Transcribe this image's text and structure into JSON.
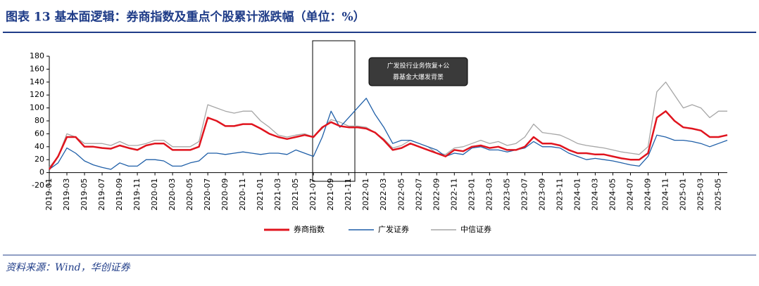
{
  "chart_data": {
    "type": "line",
    "title": "图表 13  基本面逻辑：券商指数及重点个股累计涨跌幅（单位：%）",
    "annotation": [
      "广发投行业务恢复+公",
      "募基金大爆发背景"
    ],
    "source": "资料来源：Wind，华创证券",
    "x": [
      "2019-01",
      "2019-02",
      "2019-03",
      "2019-04",
      "2019-05",
      "2019-06",
      "2019-07",
      "2019-08",
      "2019-09",
      "2019-10",
      "2019-11",
      "2019-12",
      "2020-01",
      "2020-02",
      "2020-03",
      "2020-04",
      "2020-05",
      "2020-06",
      "2020-07",
      "2020-08",
      "2020-09",
      "2020-10",
      "2020-11",
      "2020-12",
      "2021-01",
      "2021-02",
      "2021-03",
      "2021-04",
      "2021-05",
      "2021-06",
      "2021-07",
      "2021-08",
      "2021-09",
      "2021-10",
      "2021-11",
      "2021-12",
      "2022-01",
      "2022-02",
      "2022-03",
      "2022-04",
      "2022-05",
      "2022-06",
      "2022-07",
      "2022-08",
      "2022-09",
      "2022-10",
      "2022-11",
      "2022-12",
      "2023-01",
      "2023-02",
      "2023-03",
      "2023-04",
      "2023-05",
      "2023-06",
      "2023-07",
      "2023-08",
      "2023-09",
      "2023-10",
      "2023-11",
      "2023-12",
      "2024-01",
      "2024-02",
      "2024-03",
      "2024-04",
      "2024-05",
      "2024-06",
      "2024-07",
      "2024-08",
      "2024-09",
      "2024-10",
      "2024-11",
      "2024-12",
      "2025-01",
      "2025-02",
      "2025-03",
      "2025-04",
      "2025-05",
      "2025-06"
    ],
    "series": [
      {
        "name": "券商指数",
        "color": "#e0141e",
        "values": [
          5,
          25,
          55,
          55,
          40,
          40,
          38,
          37,
          42,
          38,
          35,
          42,
          45,
          45,
          35,
          35,
          35,
          40,
          85,
          80,
          72,
          72,
          75,
          75,
          68,
          60,
          55,
          52,
          55,
          58,
          55,
          70,
          78,
          72,
          70,
          70,
          68,
          62,
          50,
          35,
          38,
          45,
          40,
          35,
          30,
          25,
          35,
          33,
          40,
          42,
          38,
          40,
          35,
          35,
          40,
          55,
          45,
          45,
          42,
          35,
          30,
          30,
          28,
          28,
          25,
          22,
          20,
          20,
          30,
          85,
          95,
          80,
          70,
          68,
          65,
          55,
          55,
          58
        ]
      },
      {
        "name": "广发证券",
        "color": "#1f5fa8",
        "values": [
          5,
          15,
          38,
          30,
          18,
          12,
          8,
          5,
          15,
          10,
          10,
          20,
          20,
          18,
          10,
          10,
          15,
          18,
          30,
          30,
          28,
          30,
          32,
          30,
          28,
          30,
          30,
          28,
          35,
          30,
          25,
          55,
          95,
          70,
          85,
          100,
          115,
          90,
          70,
          45,
          50,
          50,
          45,
          40,
          35,
          25,
          30,
          28,
          38,
          40,
          35,
          35,
          32,
          35,
          38,
          48,
          40,
          40,
          38,
          30,
          25,
          20,
          22,
          20,
          18,
          15,
          12,
          10,
          25,
          58,
          55,
          50,
          50,
          48,
          45,
          40,
          45,
          50
        ]
      },
      {
        "name": "中信证券",
        "color": "#a6a6a6",
        "values": [
          8,
          25,
          60,
          55,
          45,
          45,
          45,
          42,
          48,
          42,
          42,
          45,
          50,
          50,
          40,
          40,
          40,
          48,
          105,
          100,
          95,
          92,
          95,
          95,
          80,
          70,
          58,
          55,
          58,
          60,
          55,
          68,
          82,
          78,
          72,
          72,
          70,
          62,
          52,
          38,
          42,
          50,
          45,
          40,
          30,
          28,
          38,
          40,
          45,
          50,
          45,
          48,
          42,
          45,
          55,
          75,
          62,
          60,
          58,
          52,
          45,
          42,
          40,
          38,
          35,
          32,
          30,
          28,
          40,
          125,
          140,
          120,
          100,
          105,
          100,
          85,
          95,
          95
        ]
      }
    ],
    "xlim": [
      "2019-01",
      "2025-06"
    ],
    "xticks": [
      "2019-01",
      "2019-03",
      "2019-05",
      "2019-07",
      "2019-09",
      "2019-11",
      "2020-01",
      "2020-03",
      "2020-05",
      "2020-07",
      "2020-09",
      "2020-11",
      "2021-01",
      "2021-03",
      "2021-05",
      "2021-07",
      "2021-09",
      "2021-11",
      "2022-01",
      "2022-03",
      "2022-05",
      "2022-07",
      "2022-09",
      "2022-11",
      "2023-01",
      "2023-03",
      "2023-05",
      "2023-07",
      "2023-09",
      "2023-11",
      "2024-01",
      "2024-03",
      "2024-05",
      "2024-07",
      "2024-09",
      "2024-11",
      "2025-01",
      "2025-03",
      "2025-05"
    ],
    "ylim": [
      -20,
      180
    ],
    "yticks": [
      -20,
      0,
      20,
      40,
      60,
      80,
      100,
      120,
      140,
      160,
      180
    ]
  }
}
